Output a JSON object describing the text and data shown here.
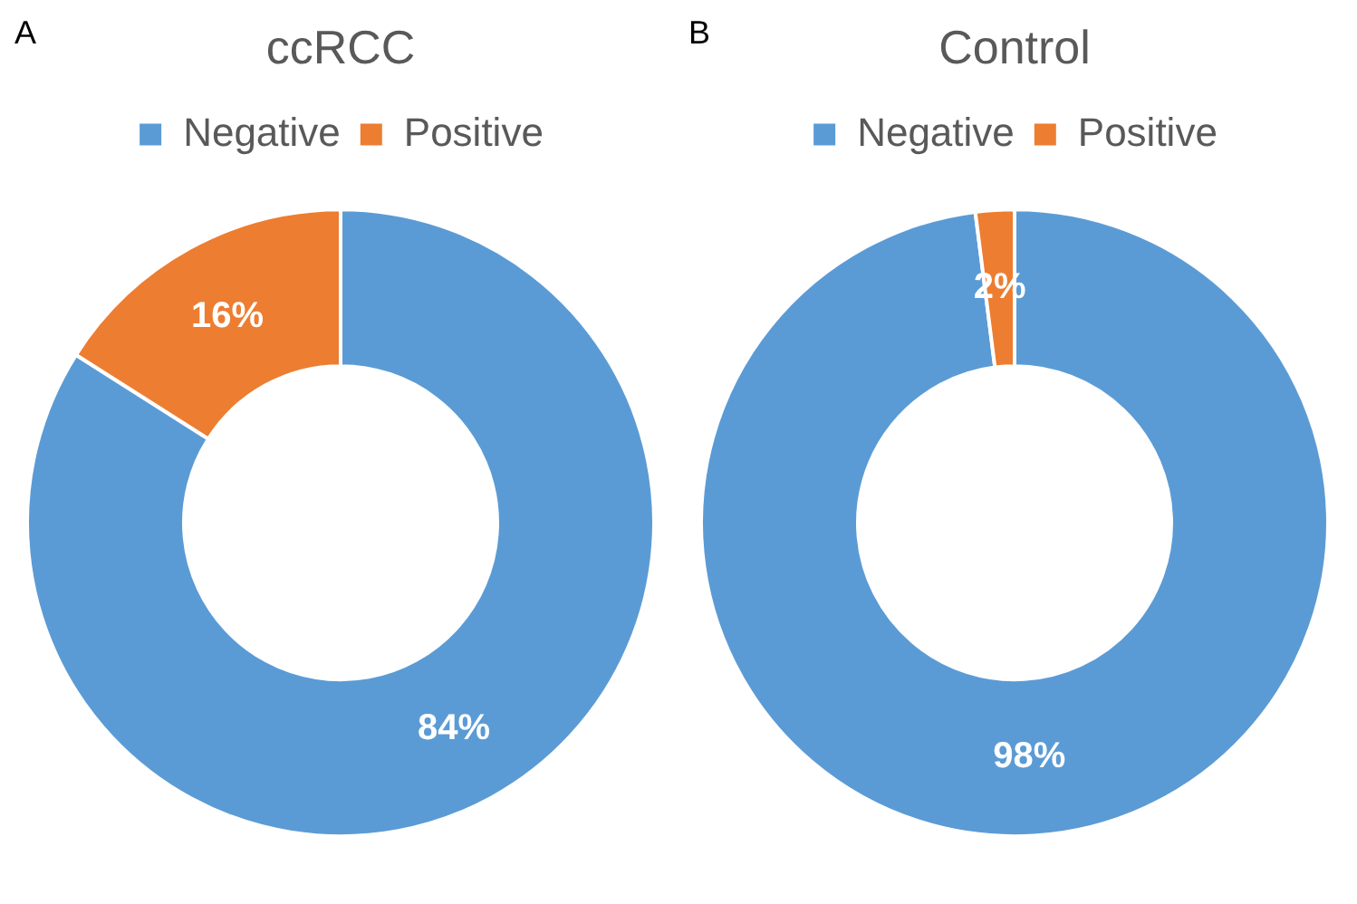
{
  "chart_data": [
    {
      "type": "donut",
      "title": "ccRCC",
      "annotations": [
        "A"
      ],
      "categories": [
        "Negative",
        "Positive"
      ],
      "values": [
        84,
        16
      ],
      "colors": [
        "#5b9bd5",
        "#ed7d31"
      ],
      "value_labels": [
        "84%",
        "16%"
      ],
      "legend": "top"
    },
    {
      "type": "donut",
      "title": "Control",
      "annotations": [
        "B"
      ],
      "categories": [
        "Negative",
        "Positive"
      ],
      "values": [
        98,
        2
      ],
      "colors": [
        "#5b9bd5",
        "#ed7d31"
      ],
      "value_labels": [
        "98%",
        "2%"
      ],
      "legend": "top"
    }
  ]
}
